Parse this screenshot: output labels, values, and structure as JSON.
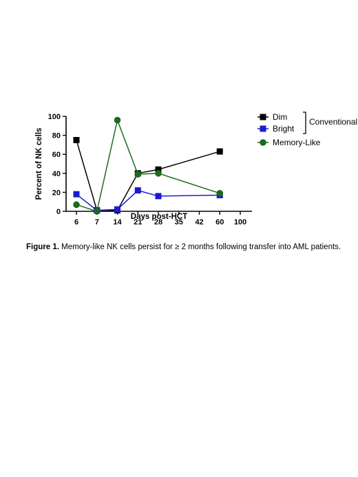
{
  "chart_data": {
    "type": "line",
    "xlabel": "Days post-HCT",
    "ylabel": "Percent of NK cells",
    "categories": [
      "6",
      "7",
      "14",
      "21",
      "28",
      "35",
      "42",
      "60",
      "100"
    ],
    "ylim": [
      0,
      100
    ],
    "yticks": [
      0,
      20,
      40,
      60,
      80,
      100
    ],
    "series": [
      {
        "name": "Dim",
        "color": "#000000",
        "marker": "square",
        "points": [
          [
            "6",
            75
          ],
          [
            "7",
            1
          ],
          [
            "14",
            1
          ],
          [
            "21",
            40
          ],
          [
            "28",
            44
          ],
          [
            "60",
            63
          ]
        ]
      },
      {
        "name": "Bright",
        "color": "#1a1ad0",
        "marker": "square",
        "points": [
          [
            "6",
            18
          ],
          [
            "7",
            1
          ],
          [
            "14",
            2
          ],
          [
            "21",
            22
          ],
          [
            "28",
            16
          ],
          [
            "60",
            17
          ]
        ]
      },
      {
        "name": "Memory-Like",
        "color": "#1b6b1b",
        "marker": "circle",
        "points": [
          [
            "6",
            7
          ],
          [
            "7",
            0
          ],
          [
            "14",
            96
          ],
          [
            "21",
            39
          ],
          [
            "28",
            40
          ],
          [
            "60",
            19
          ]
        ]
      }
    ],
    "legend_group_label": "Conventional",
    "legend_position": "right",
    "grid": false
  },
  "caption": {
    "label": "Figure 1.",
    "text": " Memory-like NK cells persist for ≥ 2 months following transfer into AML patients."
  }
}
